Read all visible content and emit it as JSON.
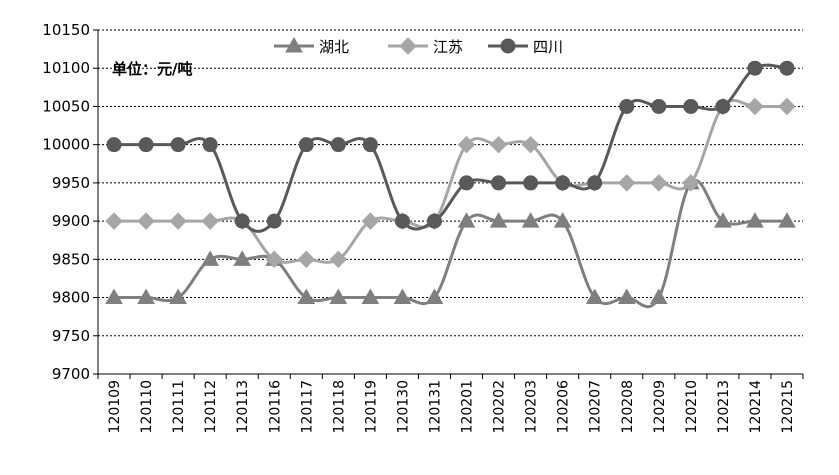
{
  "chart_data": {
    "type": "line",
    "unit_label": "单位：元/吨",
    "ylim": [
      9700,
      10150
    ],
    "yticks": [
      9700,
      9750,
      9800,
      9850,
      9900,
      9950,
      10000,
      10050,
      10100,
      10150
    ],
    "grid": "horizontal-dashed",
    "legend_position": "top-center",
    "categories": [
      "120109",
      "120110",
      "120111",
      "120112",
      "120113",
      "120116",
      "120117",
      "120118",
      "120119",
      "120130",
      "120131",
      "120201",
      "120202",
      "120203",
      "120206",
      "120207",
      "120208",
      "120209",
      "120210",
      "120213",
      "120214",
      "120215"
    ],
    "series": [
      {
        "name": "湖北",
        "marker": "triangle",
        "color": "#7f7f7f",
        "values": [
          9800,
          9800,
          9800,
          9850,
          9850,
          9850,
          9800,
          9800,
          9800,
          9800,
          9800,
          9900,
          9900,
          9900,
          9900,
          9800,
          9800,
          9800,
          9950,
          9900,
          9900,
          9900
        ]
      },
      {
        "name": "江苏",
        "marker": "diamond",
        "color": "#a6a6a6",
        "values": [
          9900,
          9900,
          9900,
          9900,
          9900,
          9850,
          9850,
          9850,
          9900,
          9900,
          9900,
          10000,
          10000,
          10000,
          9950,
          9950,
          9950,
          9950,
          9950,
          10050,
          10050,
          10050
        ]
      },
      {
        "name": "四川",
        "marker": "circle",
        "color": "#595959",
        "values": [
          10000,
          10000,
          10000,
          10000,
          9900,
          9900,
          10000,
          10000,
          10000,
          9900,
          9900,
          9950,
          9950,
          9950,
          9950,
          9950,
          10050,
          10050,
          10050,
          10050,
          10100,
          10100
        ]
      }
    ]
  }
}
